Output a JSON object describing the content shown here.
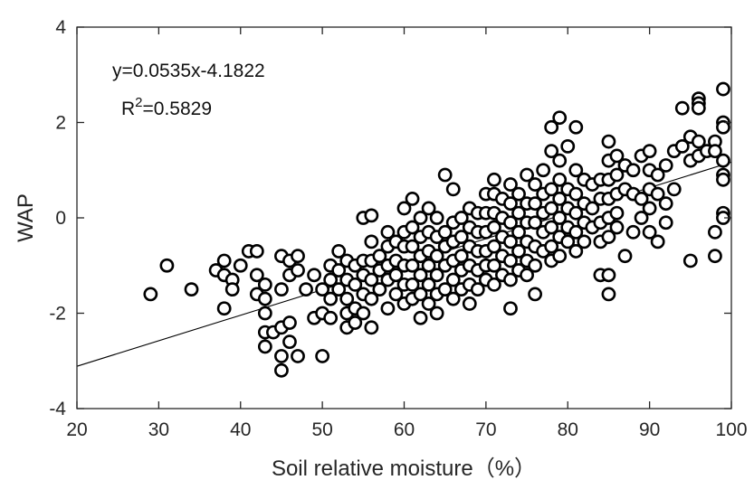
{
  "chart_data": {
    "type": "scatter",
    "title": "",
    "xlabel": "Soil relative moisture（%）",
    "ylabel": "WAP",
    "xlim": [
      20,
      100
    ],
    "ylim": [
      -4,
      4
    ],
    "xticks": [
      "20",
      "30",
      "40",
      "50",
      "60",
      "70",
      "80",
      "90",
      "100"
    ],
    "yticks": [
      "-4",
      "-2",
      "0",
      "2",
      "4"
    ],
    "grid": false,
    "legend": "none",
    "marker": "open-circle",
    "marker_color": "#000000",
    "annotations": {
      "equation": "y=0.0535x-4.1822",
      "r2_prefix": "R",
      "r2_exp": "2",
      "r2_value": "=0.5829"
    },
    "fit_line": {
      "slope": 0.0535,
      "intercept": -4.1822
    },
    "series": [
      {
        "points": [
          [
            29,
            -1.6
          ],
          [
            31,
            -1.0
          ],
          [
            34,
            -1.5
          ],
          [
            37,
            -1.1
          ],
          [
            38,
            -0.9
          ],
          [
            38,
            -1.2
          ],
          [
            38,
            -1.9
          ],
          [
            39,
            -1.3
          ],
          [
            39,
            -1.5
          ],
          [
            40,
            -1.0
          ],
          [
            41,
            -0.7
          ],
          [
            42,
            -0.7
          ],
          [
            42,
            -1.2
          ],
          [
            42,
            -1.6
          ],
          [
            43,
            -1.4
          ],
          [
            43,
            -1.7
          ],
          [
            43,
            -2.0
          ],
          [
            43,
            -2.4
          ],
          [
            43,
            -2.7
          ],
          [
            44,
            -2.4
          ],
          [
            45,
            -0.8
          ],
          [
            45,
            -1.5
          ],
          [
            45,
            -2.3
          ],
          [
            45,
            -2.9
          ],
          [
            45,
            -3.2
          ],
          [
            46,
            -0.9
          ],
          [
            46,
            -1.2
          ],
          [
            46,
            -2.2
          ],
          [
            46,
            -2.6
          ],
          [
            47,
            -0.8
          ],
          [
            47,
            -1.1
          ],
          [
            47,
            -2.9
          ],
          [
            48,
            -1.5
          ],
          [
            49,
            -1.2
          ],
          [
            49,
            -2.1
          ],
          [
            50,
            -1.5
          ],
          [
            50,
            -2.0
          ],
          [
            50,
            -2.9
          ],
          [
            51,
            -1.0
          ],
          [
            51,
            -1.3
          ],
          [
            51,
            -1.7
          ],
          [
            51,
            -2.1
          ],
          [
            52,
            -0.7
          ],
          [
            52,
            -1.1
          ],
          [
            52,
            -1.5
          ],
          [
            53,
            -0.9
          ],
          [
            53,
            -1.3
          ],
          [
            53,
            -1.7
          ],
          [
            53,
            -2.0
          ],
          [
            53,
            -2.3
          ],
          [
            54,
            -1.0
          ],
          [
            54,
            -1.4
          ],
          [
            54,
            -1.9
          ],
          [
            54,
            -2.2
          ],
          [
            55,
            0.0
          ],
          [
            55,
            -0.9
          ],
          [
            55,
            -1.2
          ],
          [
            55,
            -1.6
          ],
          [
            55,
            -2.0
          ],
          [
            56,
            0.05
          ],
          [
            56,
            -0.5
          ],
          [
            56,
            -0.9
          ],
          [
            56,
            -1.3
          ],
          [
            56,
            -1.7
          ],
          [
            56,
            -2.3
          ],
          [
            57,
            -0.8
          ],
          [
            57,
            -1.1
          ],
          [
            57,
            -1.5
          ],
          [
            58,
            -0.3
          ],
          [
            58,
            -0.6
          ],
          [
            58,
            -1.0
          ],
          [
            58,
            -1.3
          ],
          [
            58,
            -1.9
          ],
          [
            59,
            -0.5
          ],
          [
            59,
            -0.9
          ],
          [
            59,
            -1.2
          ],
          [
            59,
            -1.6
          ],
          [
            60,
            0.2
          ],
          [
            60,
            -0.3
          ],
          [
            60,
            -0.6
          ],
          [
            60,
            -1.0
          ],
          [
            60,
            -1.4
          ],
          [
            60,
            -1.8
          ],
          [
            61,
            0.4
          ],
          [
            61,
            -0.2
          ],
          [
            61,
            -0.6
          ],
          [
            61,
            -1.0
          ],
          [
            61,
            -1.4
          ],
          [
            61,
            -1.7
          ],
          [
            62,
            0.0
          ],
          [
            62,
            -0.4
          ],
          [
            62,
            -0.8
          ],
          [
            62,
            -1.2
          ],
          [
            62,
            -1.6
          ],
          [
            62,
            -2.1
          ],
          [
            63,
            0.2
          ],
          [
            63,
            -0.3
          ],
          [
            63,
            -0.7
          ],
          [
            63,
            -1.0
          ],
          [
            63,
            -1.4
          ],
          [
            63,
            -1.8
          ],
          [
            64,
            0.0
          ],
          [
            64,
            -0.4
          ],
          [
            64,
            -0.8
          ],
          [
            64,
            -1.2
          ],
          [
            64,
            -1.6
          ],
          [
            64,
            -2.0
          ],
          [
            65,
            0.9
          ],
          [
            65,
            -0.3
          ],
          [
            65,
            -0.6
          ],
          [
            65,
            -1.0
          ],
          [
            65,
            -1.5
          ],
          [
            66,
            0.6
          ],
          [
            66,
            -0.1
          ],
          [
            66,
            -0.5
          ],
          [
            66,
            -0.9
          ],
          [
            66,
            -1.3
          ],
          [
            66,
            -1.7
          ],
          [
            67,
            0.0
          ],
          [
            67,
            -0.4
          ],
          [
            67,
            -0.8
          ],
          [
            67,
            -1.1
          ],
          [
            67,
            -1.5
          ],
          [
            68,
            0.2
          ],
          [
            68,
            -0.2
          ],
          [
            68,
            -0.6
          ],
          [
            68,
            -1.0
          ],
          [
            68,
            -1.4
          ],
          [
            68,
            -1.8
          ],
          [
            69,
            0.1
          ],
          [
            69,
            -0.3
          ],
          [
            69,
            -0.7
          ],
          [
            69,
            -1.1
          ],
          [
            69,
            -1.5
          ],
          [
            70,
            0.5
          ],
          [
            70,
            0.1
          ],
          [
            70,
            -0.3
          ],
          [
            70,
            -0.7
          ],
          [
            70,
            -1.0
          ],
          [
            70,
            -1.3
          ],
          [
            71,
            0.8
          ],
          [
            71,
            0.5
          ],
          [
            71,
            0.1
          ],
          [
            71,
            -0.2
          ],
          [
            71,
            -0.6
          ],
          [
            71,
            -1.0
          ],
          [
            71,
            -1.4
          ],
          [
            72,
            0.4
          ],
          [
            72,
            0.0
          ],
          [
            72,
            -0.4
          ],
          [
            72,
            -0.8
          ],
          [
            72,
            -1.2
          ],
          [
            73,
            0.7
          ],
          [
            73,
            0.3
          ],
          [
            73,
            -0.1
          ],
          [
            73,
            -0.5
          ],
          [
            73,
            -0.9
          ],
          [
            73,
            -1.3
          ],
          [
            73,
            -1.9
          ],
          [
            74,
            0.5
          ],
          [
            74,
            0.1
          ],
          [
            74,
            -0.3
          ],
          [
            74,
            -0.7
          ],
          [
            74,
            -1.1
          ],
          [
            75,
            0.9
          ],
          [
            75,
            0.3
          ],
          [
            75,
            -0.1
          ],
          [
            75,
            -0.5
          ],
          [
            75,
            -0.9
          ],
          [
            75,
            -1.2
          ],
          [
            76,
            0.7
          ],
          [
            76,
            0.3
          ],
          [
            76,
            -0.1
          ],
          [
            76,
            -0.6
          ],
          [
            76,
            -1.0
          ],
          [
            76,
            -1.6
          ],
          [
            77,
            1.0
          ],
          [
            77,
            0.5
          ],
          [
            77,
            0.1
          ],
          [
            77,
            -0.3
          ],
          [
            77,
            -0.7
          ],
          [
            78,
            1.9
          ],
          [
            78,
            1.4
          ],
          [
            78,
            0.6
          ],
          [
            78,
            0.2
          ],
          [
            78,
            -0.2
          ],
          [
            78,
            -0.6
          ],
          [
            78,
            -0.9
          ],
          [
            79,
            2.1
          ],
          [
            79,
            1.2
          ],
          [
            79,
            0.8
          ],
          [
            79,
            0.4
          ],
          [
            79,
            0.0
          ],
          [
            79,
            -0.4
          ],
          [
            79,
            -0.8
          ],
          [
            80,
            1.5
          ],
          [
            80,
            0.6
          ],
          [
            80,
            0.2
          ],
          [
            80,
            -0.2
          ],
          [
            80,
            -0.5
          ],
          [
            81,
            1.9
          ],
          [
            81,
            1.0
          ],
          [
            81,
            0.5
          ],
          [
            81,
            0.1
          ],
          [
            81,
            -0.3
          ],
          [
            81,
            -0.7
          ],
          [
            82,
            0.8
          ],
          [
            82,
            0.3
          ],
          [
            82,
            -0.1
          ],
          [
            82,
            -0.5
          ],
          [
            83,
            0.7
          ],
          [
            83,
            0.2
          ],
          [
            83,
            -0.2
          ],
          [
            84,
            0.8
          ],
          [
            84,
            0.4
          ],
          [
            84,
            -0.1
          ],
          [
            84,
            -0.5
          ],
          [
            84,
            -1.2
          ],
          [
            85,
            1.6
          ],
          [
            85,
            1.2
          ],
          [
            85,
            0.8
          ],
          [
            85,
            0.4
          ],
          [
            85,
            0.0
          ],
          [
            85,
            -0.4
          ],
          [
            85,
            -1.2
          ],
          [
            85,
            -1.6
          ],
          [
            86,
            1.3
          ],
          [
            86,
            0.9
          ],
          [
            86,
            0.5
          ],
          [
            86,
            0.1
          ],
          [
            86,
            -0.2
          ],
          [
            87,
            1.1
          ],
          [
            87,
            0.6
          ],
          [
            87,
            -0.8
          ],
          [
            88,
            1.0
          ],
          [
            88,
            0.5
          ],
          [
            88,
            -0.3
          ],
          [
            89,
            1.3
          ],
          [
            89,
            0.4
          ],
          [
            89,
            0.0
          ],
          [
            90,
            1.4
          ],
          [
            90,
            1.0
          ],
          [
            90,
            0.6
          ],
          [
            90,
            0.2
          ],
          [
            90,
            -0.3
          ],
          [
            91,
            0.9
          ],
          [
            91,
            0.5
          ],
          [
            91,
            -0.5
          ],
          [
            92,
            1.1
          ],
          [
            92,
            0.3
          ],
          [
            92,
            -0.1
          ],
          [
            93,
            1.4
          ],
          [
            93,
            0.6
          ],
          [
            94,
            2.3
          ],
          [
            94,
            1.5
          ],
          [
            95,
            1.7
          ],
          [
            95,
            1.2
          ],
          [
            95,
            -0.9
          ],
          [
            96,
            2.5
          ],
          [
            96,
            2.4
          ],
          [
            96,
            2.3
          ],
          [
            96,
            1.6
          ],
          [
            96,
            1.3
          ],
          [
            97,
            1.4
          ],
          [
            98,
            1.6
          ],
          [
            98,
            1.4
          ],
          [
            98,
            -0.3
          ],
          [
            98,
            -0.8
          ],
          [
            99,
            2.7
          ],
          [
            99,
            2.0
          ],
          [
            99,
            1.9
          ],
          [
            99,
            1.2
          ],
          [
            99,
            0.9
          ],
          [
            99,
            0.8
          ],
          [
            99,
            0.1
          ],
          [
            99,
            0.0
          ]
        ]
      }
    ]
  }
}
